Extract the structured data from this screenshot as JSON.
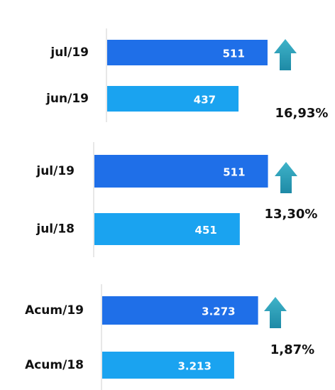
{
  "chart_data": [
    {
      "type": "bar",
      "orientation": "horizontal",
      "categories": [
        "jul/19",
        "jun/19"
      ],
      "values": [
        511,
        437
      ],
      "colors": [
        "#1f6fe8",
        "#1aa3f0"
      ],
      "xlim": [
        100,
        560
      ],
      "annotation": "16,93%"
    },
    {
      "type": "bar",
      "orientation": "horizontal",
      "categories": [
        "jul/19",
        "jul/18"
      ],
      "values": [
        511,
        451
      ],
      "colors": [
        "#1f6fe8",
        "#1aa3f0"
      ],
      "xlim": [
        140,
        560
      ],
      "annotation": "13,30%"
    },
    {
      "type": "bar",
      "orientation": "horizontal",
      "categories": [
        "Acum/19",
        "Acum/18"
      ],
      "values": [
        3273,
        3213
      ],
      "value_labels": [
        "3.273",
        "3.213"
      ],
      "colors": [
        "#1f6fe8",
        "#1aa3f0"
      ],
      "xlim": [
        2880,
        3320
      ],
      "annotation": "1,87%"
    }
  ]
}
